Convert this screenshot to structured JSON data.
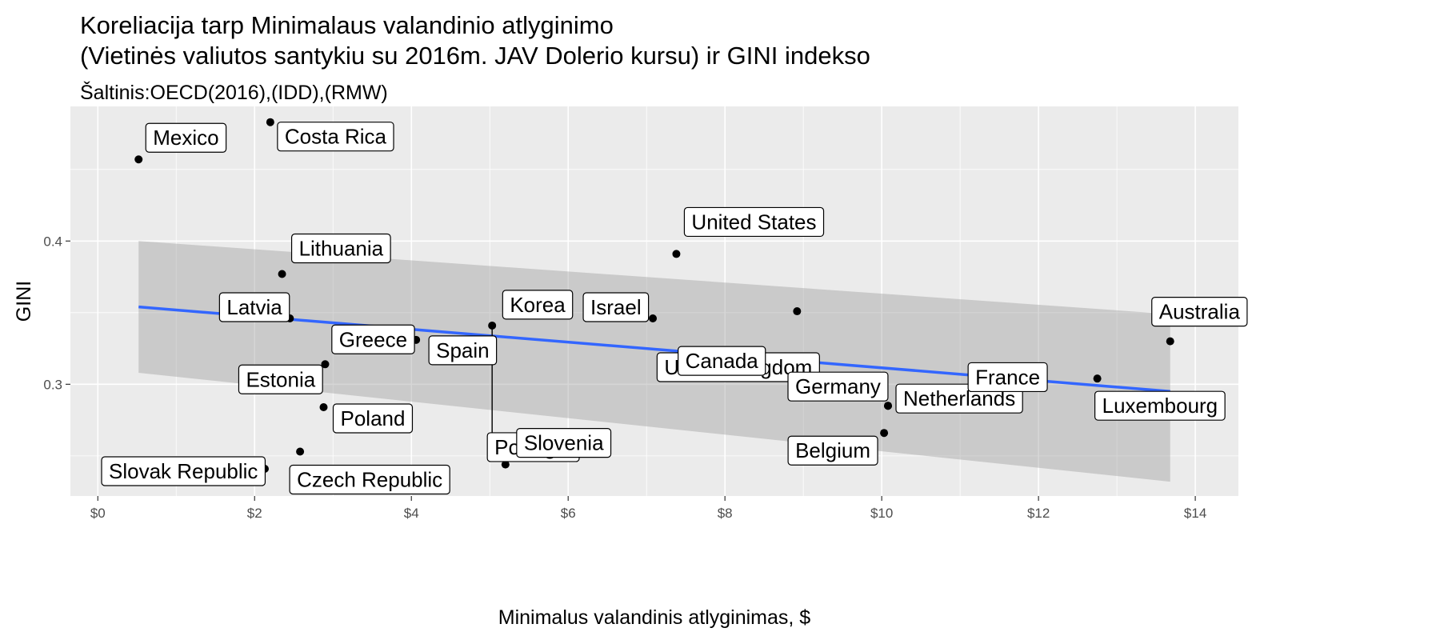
{
  "header": {
    "title_line1": "Koreliacija tarp Minimalaus valandinio atlyginimo",
    "title_line2": "(Vietinės valiutos santykiu su 2016m. JAV Dolerio kursu) ir GINI indekso",
    "subtitle": "Šaltinis:OECD(2016),(IDD),(RMW)"
  },
  "colors": {
    "panel": "#ebebeb",
    "grid": "#ffffff",
    "trend_line": "#3366ff",
    "confidence_band": "#999999",
    "points": "#000000"
  },
  "chart_data": {
    "type": "scatter",
    "title": "Koreliacija tarp Minimalaus valandinio atlyginimo (Vietinės valiutos santykiu su 2016m. JAV Dolerio kursu) ir GINI indekso",
    "subtitle": "Šaltinis:OECD(2016),(IDD),(RMW)",
    "xlabel": "Minimalus valandinis atlyginimas, $",
    "ylabel": "GINI",
    "xlim": [
      -0.35,
      14.55
    ],
    "ylim": [
      0.222,
      0.494
    ],
    "x_ticks": [
      0,
      2,
      4,
      6,
      8,
      10,
      12,
      14
    ],
    "x_tick_labels": [
      "$0",
      "$2",
      "$4",
      "$6",
      "$8",
      "$10",
      "$12",
      "$14"
    ],
    "y_ticks": [
      0.3,
      0.4
    ],
    "y_tick_labels": [
      "0.3",
      "0.4"
    ],
    "grid": true,
    "points": [
      {
        "label": "Mexico",
        "x": 0.52,
        "y": 0.457
      },
      {
        "label": "Costa Rica",
        "x": 2.2,
        "y": 0.483
      },
      {
        "label": "Lithuania",
        "x": 2.35,
        "y": 0.377
      },
      {
        "label": "Latvia",
        "x": 2.45,
        "y": 0.346
      },
      {
        "label": "Greece",
        "x": 3.72,
        "y": 0.333
      },
      {
        "label": "Estonia",
        "x": 2.9,
        "y": 0.314
      },
      {
        "label": "Poland",
        "x": 2.88,
        "y": 0.284
      },
      {
        "label": "Czech Republic",
        "x": 2.58,
        "y": 0.253
      },
      {
        "label": "Slovak Republic",
        "x": 2.13,
        "y": 0.241
      },
      {
        "label": "Spain",
        "x": 4.06,
        "y": 0.331
      },
      {
        "label": "Portugal",
        "x": 5.03,
        "y": 0.341
      },
      {
        "label": "Slovenia",
        "x": 5.2,
        "y": 0.244
      },
      {
        "label": "Korea",
        "x": 5.45,
        "y": 0.355
      },
      {
        "label": "United States",
        "x": 7.38,
        "y": 0.391
      },
      {
        "label": "Israel",
        "x": 7.08,
        "y": 0.346
      },
      {
        "label": "United Kingdom",
        "x": 8.92,
        "y": 0.351
      },
      {
        "label": "Canada",
        "x": 9.75,
        "y": 0.294
      },
      {
        "label": "Germany",
        "x": 10.08,
        "y": 0.285
      },
      {
        "label": "Belgium",
        "x": 10.03,
        "y": 0.266
      },
      {
        "label": "Netherlands",
        "x": 10.08,
        "y": 0.285
      },
      {
        "label": "France",
        "x": 11.0,
        "y": 0.291
      },
      {
        "label": "Luxembourg",
        "x": 12.75,
        "y": 0.304
      },
      {
        "label": "Australia",
        "x": 13.68,
        "y": 0.33
      }
    ],
    "trend_line": {
      "method": "linear",
      "x_range": [
        0.52,
        13.68
      ],
      "y_start": 0.354,
      "y_end": 0.295
    },
    "confidence_band": {
      "x": [
        0.52,
        13.68
      ],
      "upper": [
        0.4,
        0.349
      ],
      "lower": [
        0.308,
        0.232
      ]
    }
  }
}
